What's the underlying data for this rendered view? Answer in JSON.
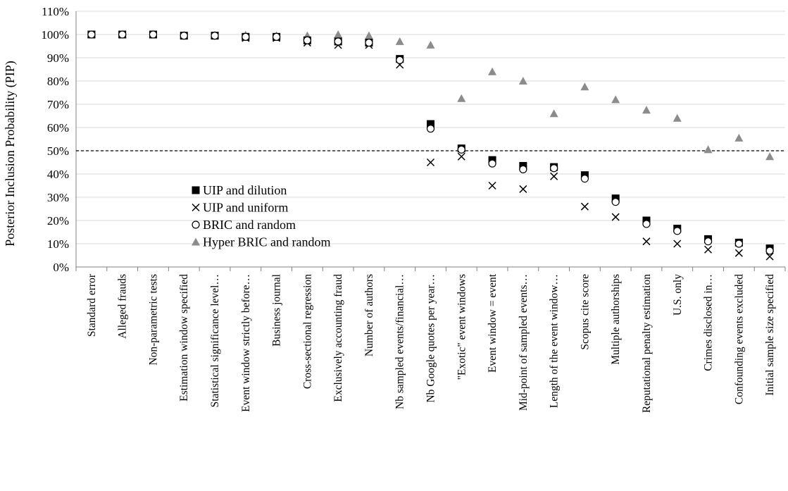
{
  "chart_data": {
    "type": "scatter",
    "title": "",
    "xlabel": "",
    "ylabel": "Posterior Inclusion Probability (PIP)",
    "ylim": [
      0,
      110
    ],
    "ytick_step": 10,
    "ytick_suffix": "%",
    "grid": "horizontal",
    "legend_position": "center-left",
    "threshold": 50,
    "categories": [
      "Standard error",
      "Alleged frauds",
      "Non-parametric tests",
      "Estimation window specified",
      "Statistical significance level…",
      "Event window strictly before…",
      "Business journal",
      "Cross-sectional regression",
      "Exclusively accounting fraud",
      "Number of authors",
      "Nb sampled events/financial…",
      "Nb Google quotes per year…",
      "\"Exotic\" event windows",
      "Event window = event",
      "Mid-point of sampled events…",
      "Length of the event window…",
      "Scopus cite score",
      "Multiple authorships",
      "Reputational penalty estimation",
      "U.S. only",
      "Crimes disclosed in…",
      "Confounding events excluded",
      "Initial sample size specified"
    ],
    "series": [
      {
        "name": "UIP and dilution",
        "marker": "square",
        "color": "#000000",
        "values": [
          100,
          100,
          100,
          99.5,
          99.5,
          99,
          99,
          97.5,
          97,
          96.5,
          89.5,
          61.5,
          51,
          46,
          43.5,
          43,
          39.5,
          29.5,
          20,
          16.5,
          12,
          10.5,
          8
        ]
      },
      {
        "name": "UIP and uniform",
        "marker": "x",
        "color": "#000000",
        "values": [
          100,
          100,
          100,
          99.5,
          99.5,
          98.5,
          98.5,
          96.5,
          95.5,
          95.5,
          87,
          45,
          47.5,
          35,
          33.5,
          39,
          26,
          21.5,
          11,
          10,
          7.5,
          6,
          4.5
        ]
      },
      {
        "name": "BRIC and random",
        "marker": "circle",
        "color": "#000000",
        "values": [
          100,
          100,
          100,
          99.5,
          99.5,
          99,
          99,
          97.5,
          97,
          96.5,
          89,
          59.5,
          50.5,
          44.5,
          42,
          42.5,
          38,
          28,
          18.5,
          15.5,
          11,
          10,
          7
        ]
      },
      {
        "name": "Hyper BRIC and random",
        "marker": "triangle",
        "color": "#8c8c8c",
        "values": [
          100,
          100,
          100,
          99.8,
          99.8,
          99.8,
          99.5,
          99.5,
          100,
          99.5,
          97,
          95.5,
          72.5,
          84,
          80,
          66,
          77.5,
          72,
          67.5,
          64,
          50.5,
          55.5,
          47.5
        ]
      }
    ]
  }
}
